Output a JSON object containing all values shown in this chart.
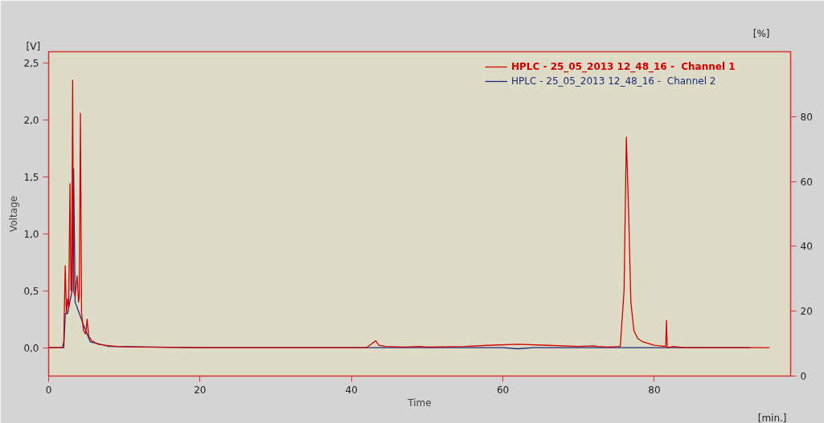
{
  "chart_data": {
    "type": "line",
    "xlabel": "Time",
    "ylabel": "Voltage",
    "annotations": [
      "[V]",
      "[%]",
      "[min.]"
    ],
    "xlim": [
      0,
      98
    ],
    "ylim": [
      -0.25,
      2.6
    ],
    "y2lim": [
      0,
      100
    ],
    "xticks": [
      0,
      20,
      40,
      60,
      80
    ],
    "yticks": [
      {
        "value": 0,
        "label": "0,0"
      },
      {
        "value": 0.5,
        "label": "0,5"
      },
      {
        "value": 1,
        "label": "1,0"
      },
      {
        "value": 1.5,
        "label": "1,5"
      },
      {
        "value": 2,
        "label": "2,0"
      },
      {
        "value": 2.5,
        "label": "2,5"
      }
    ],
    "y2ticks": [
      0,
      20,
      40,
      60,
      80
    ],
    "grid": false,
    "legend": "top right",
    "marker": "none",
    "line_style": "solid",
    "series": [
      {
        "name": "HPLC - 25_05_2013 12_48_16 -  Channel 2",
        "color": "#1f2a7a",
        "x": [
          0,
          2.0,
          2.2,
          2.5,
          3.1,
          3.3,
          3.5,
          4.6,
          5.5,
          8,
          20,
          40,
          60,
          62,
          64,
          70,
          80,
          92.7
        ],
        "values": [
          0,
          0,
          0.3,
          0.3,
          0.5,
          1.57,
          0.4,
          0.2,
          0.05,
          0.01,
          0,
          0,
          0,
          -0.01,
          0,
          0,
          0,
          0
        ]
      },
      {
        "name": "HPLC - 25_05_2013 12_48_16 -  Channel 1",
        "color": "#d40000",
        "x": [
          0,
          1.8,
          2.0,
          2.19,
          2.35,
          2.5,
          2.65,
          2.82,
          2.95,
          3.05,
          3.17,
          3.3,
          3.5,
          3.77,
          3.95,
          4.05,
          4.2,
          4.35,
          4.6,
          4.9,
          5.08,
          5.3,
          5.7,
          6.5,
          7.5,
          9,
          12,
          20,
          30,
          42,
          43.2,
          43.6,
          44.5,
          47,
          49,
          50,
          55,
          58,
          62,
          66,
          70,
          72,
          72.5,
          74,
          75.5,
          76.0,
          76.3,
          76.6,
          76.9,
          77.3,
          77.8,
          78.5,
          80,
          81.5,
          81.6,
          81.7,
          82.5,
          84,
          90,
          95.2
        ],
        "values": [
          0,
          0,
          0.05,
          0.72,
          0.3,
          0.43,
          0.35,
          1.44,
          0.5,
          0.6,
          2.35,
          0.5,
          0.45,
          0.63,
          0.4,
          0.45,
          2.06,
          0.3,
          0.15,
          0.12,
          0.25,
          0.1,
          0.06,
          0.03,
          0.02,
          0.01,
          0.005,
          0,
          0,
          0,
          0.06,
          0.02,
          0.01,
          0.005,
          0.01,
          0.005,
          0.01,
          0.02,
          0.03,
          0.02,
          0.01,
          0.015,
          0.01,
          0.005,
          0.01,
          0.5,
          1.85,
          1.2,
          0.4,
          0.15,
          0.08,
          0.05,
          0.02,
          0.01,
          0.24,
          0,
          0.01,
          0,
          0,
          0
        ]
      }
    ]
  }
}
